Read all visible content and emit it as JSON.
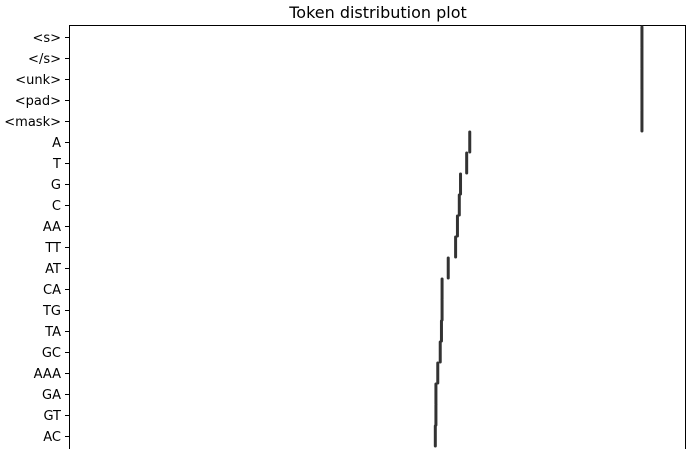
{
  "chart_data": {
    "type": "scatter",
    "title": "Token distribution plot",
    "xlabel": "",
    "ylabel": "",
    "x_ticks_visible": false,
    "grid": false,
    "legend": "none",
    "categories": [
      "<s>",
      "</s>",
      "<unk>",
      "<pad>",
      "<mask>",
      "A",
      "T",
      "G",
      "C",
      "AA",
      "TT",
      "AT",
      "CA",
      "TG",
      "TA",
      "GC",
      "AAA",
      "GA",
      "GT",
      "AC"
    ],
    "values": [
      0.93,
      0.93,
      0.93,
      0.93,
      0.93,
      0.65,
      0.645,
      0.635,
      0.633,
      0.63,
      0.627,
      0.615,
      0.605,
      0.605,
      0.604,
      0.602,
      0.598,
      0.595,
      0.595,
      0.594
    ],
    "xlim": [
      0,
      1
    ],
    "marker": "vertical-line",
    "color": "#333333"
  }
}
